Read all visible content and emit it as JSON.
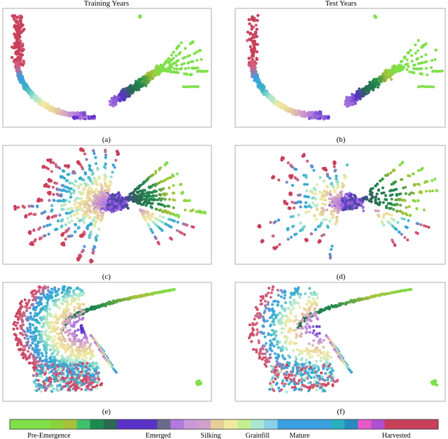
{
  "figure": {
    "column_titles": [
      "Training Years",
      "Test Years"
    ]
  },
  "colors": {
    "pre_emergence": "#7fe04a",
    "emerged": "#5a32c8",
    "silking": "#c89ad8",
    "grainfill": "#f0eaa0",
    "mature": "#3aa0e0",
    "harvested": "#c8405a",
    "axes_frame": "#9a9a9a"
  },
  "colorbar": {
    "segments": [
      "#7fe04a",
      "#7fe04a",
      "#7fe04a",
      "#8cd23c",
      "#a6c23a",
      "#3fc06a",
      "#1f8a4e",
      "#2a6a50",
      "#5a32c8",
      "#5a32c8",
      "#5a32c8",
      "#6a6a8a",
      "#b07ae0",
      "#c89ad8",
      "#d2a0c8",
      "#e6d09a",
      "#f0eaa0",
      "#c6f090",
      "#a8e8d0",
      "#8ad0e8",
      "#3aa0e0",
      "#3aa0e0",
      "#3aa0e0",
      "#3aa0e0",
      "#28b0c0",
      "#2a8abf",
      "#e85ac8",
      "#b050d0",
      "#c8405a",
      "#c8405a",
      "#c8405a",
      "#c8405a"
    ],
    "labels": [
      "Pre-Emergence",
      "Emerged",
      "Silking",
      "Grainfill",
      "Mature",
      "Harvested"
    ]
  },
  "chart_data": [
    {
      "type": "scatter",
      "panel": "(a)",
      "column": "Training Years",
      "row": 1,
      "series_shown": "dimensionality-reduced embedding colored by crop phenology stage"
    },
    {
      "type": "scatter",
      "panel": "(b)",
      "column": "Test Years",
      "row": 1
    },
    {
      "type": "scatter",
      "panel": "(c)",
      "column": "Training Years",
      "row": 2
    },
    {
      "type": "scatter",
      "panel": "(d)",
      "column": "Test Years",
      "row": 2
    },
    {
      "type": "scatter",
      "panel": "(e)",
      "column": "Training Years",
      "row": 3
    },
    {
      "type": "scatter",
      "panel": "(f)",
      "column": "Test Years",
      "row": 3
    }
  ]
}
